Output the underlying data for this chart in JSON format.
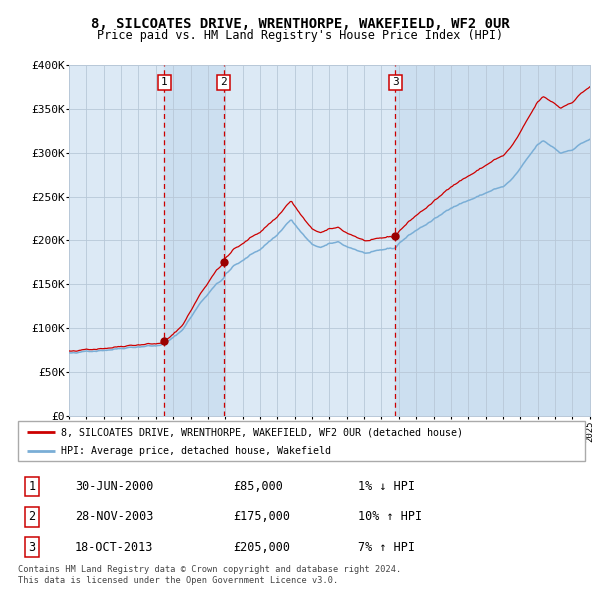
{
  "title": "8, SILCOATES DRIVE, WRENTHORPE, WAKEFIELD, WF2 0UR",
  "subtitle": "Price paid vs. HM Land Registry's House Price Index (HPI)",
  "legend_line1": "8, SILCOATES DRIVE, WRENTHORPE, WAKEFIELD, WF2 0UR (detached house)",
  "legend_line2": "HPI: Average price, detached house, Wakefield",
  "transactions": [
    {
      "num": 1,
      "date": "30-JUN-2000",
      "price": 85000,
      "hpi_rel": "1% ↓ HPI",
      "year": 2000.5
    },
    {
      "num": 2,
      "date": "28-NOV-2003",
      "price": 175000,
      "hpi_rel": "10% ↑ HPI",
      "year": 2003.9
    },
    {
      "num": 3,
      "date": "18-OCT-2013",
      "price": 205000,
      "hpi_rel": "7% ↑ HPI",
      "year": 2013.8
    }
  ],
  "footnote1": "Contains HM Land Registry data © Crown copyright and database right 2024.",
  "footnote2": "This data is licensed under the Open Government Licence v3.0.",
  "line_color_red": "#cc0000",
  "line_color_blue": "#7aaed6",
  "dot_color": "#9b0000",
  "vline_color": "#cc0000",
  "plot_bg_color": "#dce9f5",
  "shade_color": "#ccdff0",
  "grid_color": "#b8c8d8",
  "ylim": [
    0,
    400000
  ],
  "yticks": [
    0,
    50000,
    100000,
    150000,
    200000,
    250000,
    300000,
    350000,
    400000
  ],
  "xmin": 1995,
  "xmax": 2025
}
